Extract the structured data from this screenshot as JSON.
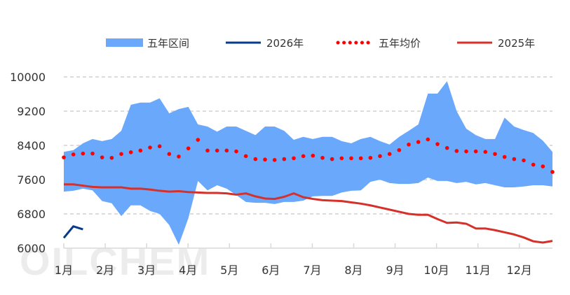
{
  "watermark": "OILCHEM",
  "chart_data": {
    "type": "area",
    "title": "",
    "xlabel": "",
    "ylabel": "",
    "ylim": [
      6000,
      10000
    ],
    "yticks": [
      "10000",
      "9200",
      "8400",
      "7600",
      "6800",
      "6000"
    ],
    "ytick_values": [
      10000,
      9200,
      8400,
      7600,
      6800,
      6000
    ],
    "grid": true,
    "legend_position": "top",
    "months": [
      "1月",
      "2月",
      "3月",
      "4月",
      "5月",
      "6月",
      "7月",
      "8月",
      "9月",
      "10月",
      "11月",
      "12月"
    ],
    "points_per_year": 52,
    "legend": {
      "band": "五年区间",
      "y2026": "2026年",
      "avg": "五年均价",
      "y2025": "2025年"
    },
    "colors": {
      "band": "#6aa8fb",
      "y2026": "#063b8c",
      "avg": "#ff0000",
      "y2025": "#d6302a"
    },
    "series": [
      {
        "name": "五年区间-上限",
        "values": [
          8250,
          8290,
          8450,
          8550,
          8500,
          8550,
          8740,
          9350,
          9400,
          9400,
          9500,
          9150,
          9250,
          9300,
          8890,
          8840,
          8720,
          8840,
          8840,
          8740,
          8640,
          8840,
          8840,
          8740,
          8530,
          8600,
          8550,
          8600,
          8600,
          8500,
          8450,
          8550,
          8600,
          8500,
          8420,
          8600,
          8740,
          8890,
          9610,
          9610,
          9900,
          9200,
          8790,
          8640,
          8550,
          8550,
          9050,
          8840,
          8760,
          8690,
          8510,
          8250
        ]
      },
      {
        "name": "五年区间-下限",
        "values": [
          7320,
          7340,
          7390,
          7350,
          7100,
          7050,
          6750,
          7000,
          7000,
          6870,
          6800,
          6540,
          6080,
          6700,
          7570,
          7350,
          7470,
          7390,
          7240,
          7080,
          7060,
          7060,
          7030,
          7080,
          7080,
          7110,
          7210,
          7220,
          7220,
          7300,
          7340,
          7350,
          7550,
          7600,
          7520,
          7500,
          7500,
          7520,
          7650,
          7570,
          7570,
          7520,
          7550,
          7490,
          7520,
          7470,
          7420,
          7420,
          7440,
          7470,
          7470,
          7440
        ]
      },
      {
        "name": "五年均价",
        "values": [
          8120,
          8190,
          8210,
          8210,
          8120,
          8110,
          8200,
          8240,
          8280,
          8350,
          8380,
          8200,
          8140,
          8330,
          8530,
          8280,
          8280,
          8280,
          8260,
          8150,
          8080,
          8070,
          8060,
          8080,
          8100,
          8150,
          8160,
          8110,
          8080,
          8100,
          8100,
          8100,
          8110,
          8150,
          8200,
          8290,
          8420,
          8480,
          8540,
          8430,
          8340,
          8270,
          8260,
          8260,
          8250,
          8200,
          8130,
          8080,
          8050,
          7950,
          7910,
          7780
        ]
      },
      {
        "name": "2025年",
        "values": [
          7490,
          7490,
          7460,
          7430,
          7420,
          7420,
          7420,
          7390,
          7390,
          7370,
          7340,
          7320,
          7330,
          7310,
          7300,
          7290,
          7290,
          7280,
          7250,
          7280,
          7210,
          7160,
          7150,
          7200,
          7280,
          7190,
          7150,
          7120,
          7110,
          7100,
          7070,
          7040,
          7000,
          6950,
          6900,
          6850,
          6800,
          6780,
          6780,
          6680,
          6590,
          6600,
          6570,
          6460,
          6460,
          6420,
          6370,
          6320,
          6250,
          6160,
          6130,
          6170
        ]
      },
      {
        "name": "2026年",
        "values": [
          6240,
          6510,
          6440
        ]
      }
    ]
  }
}
